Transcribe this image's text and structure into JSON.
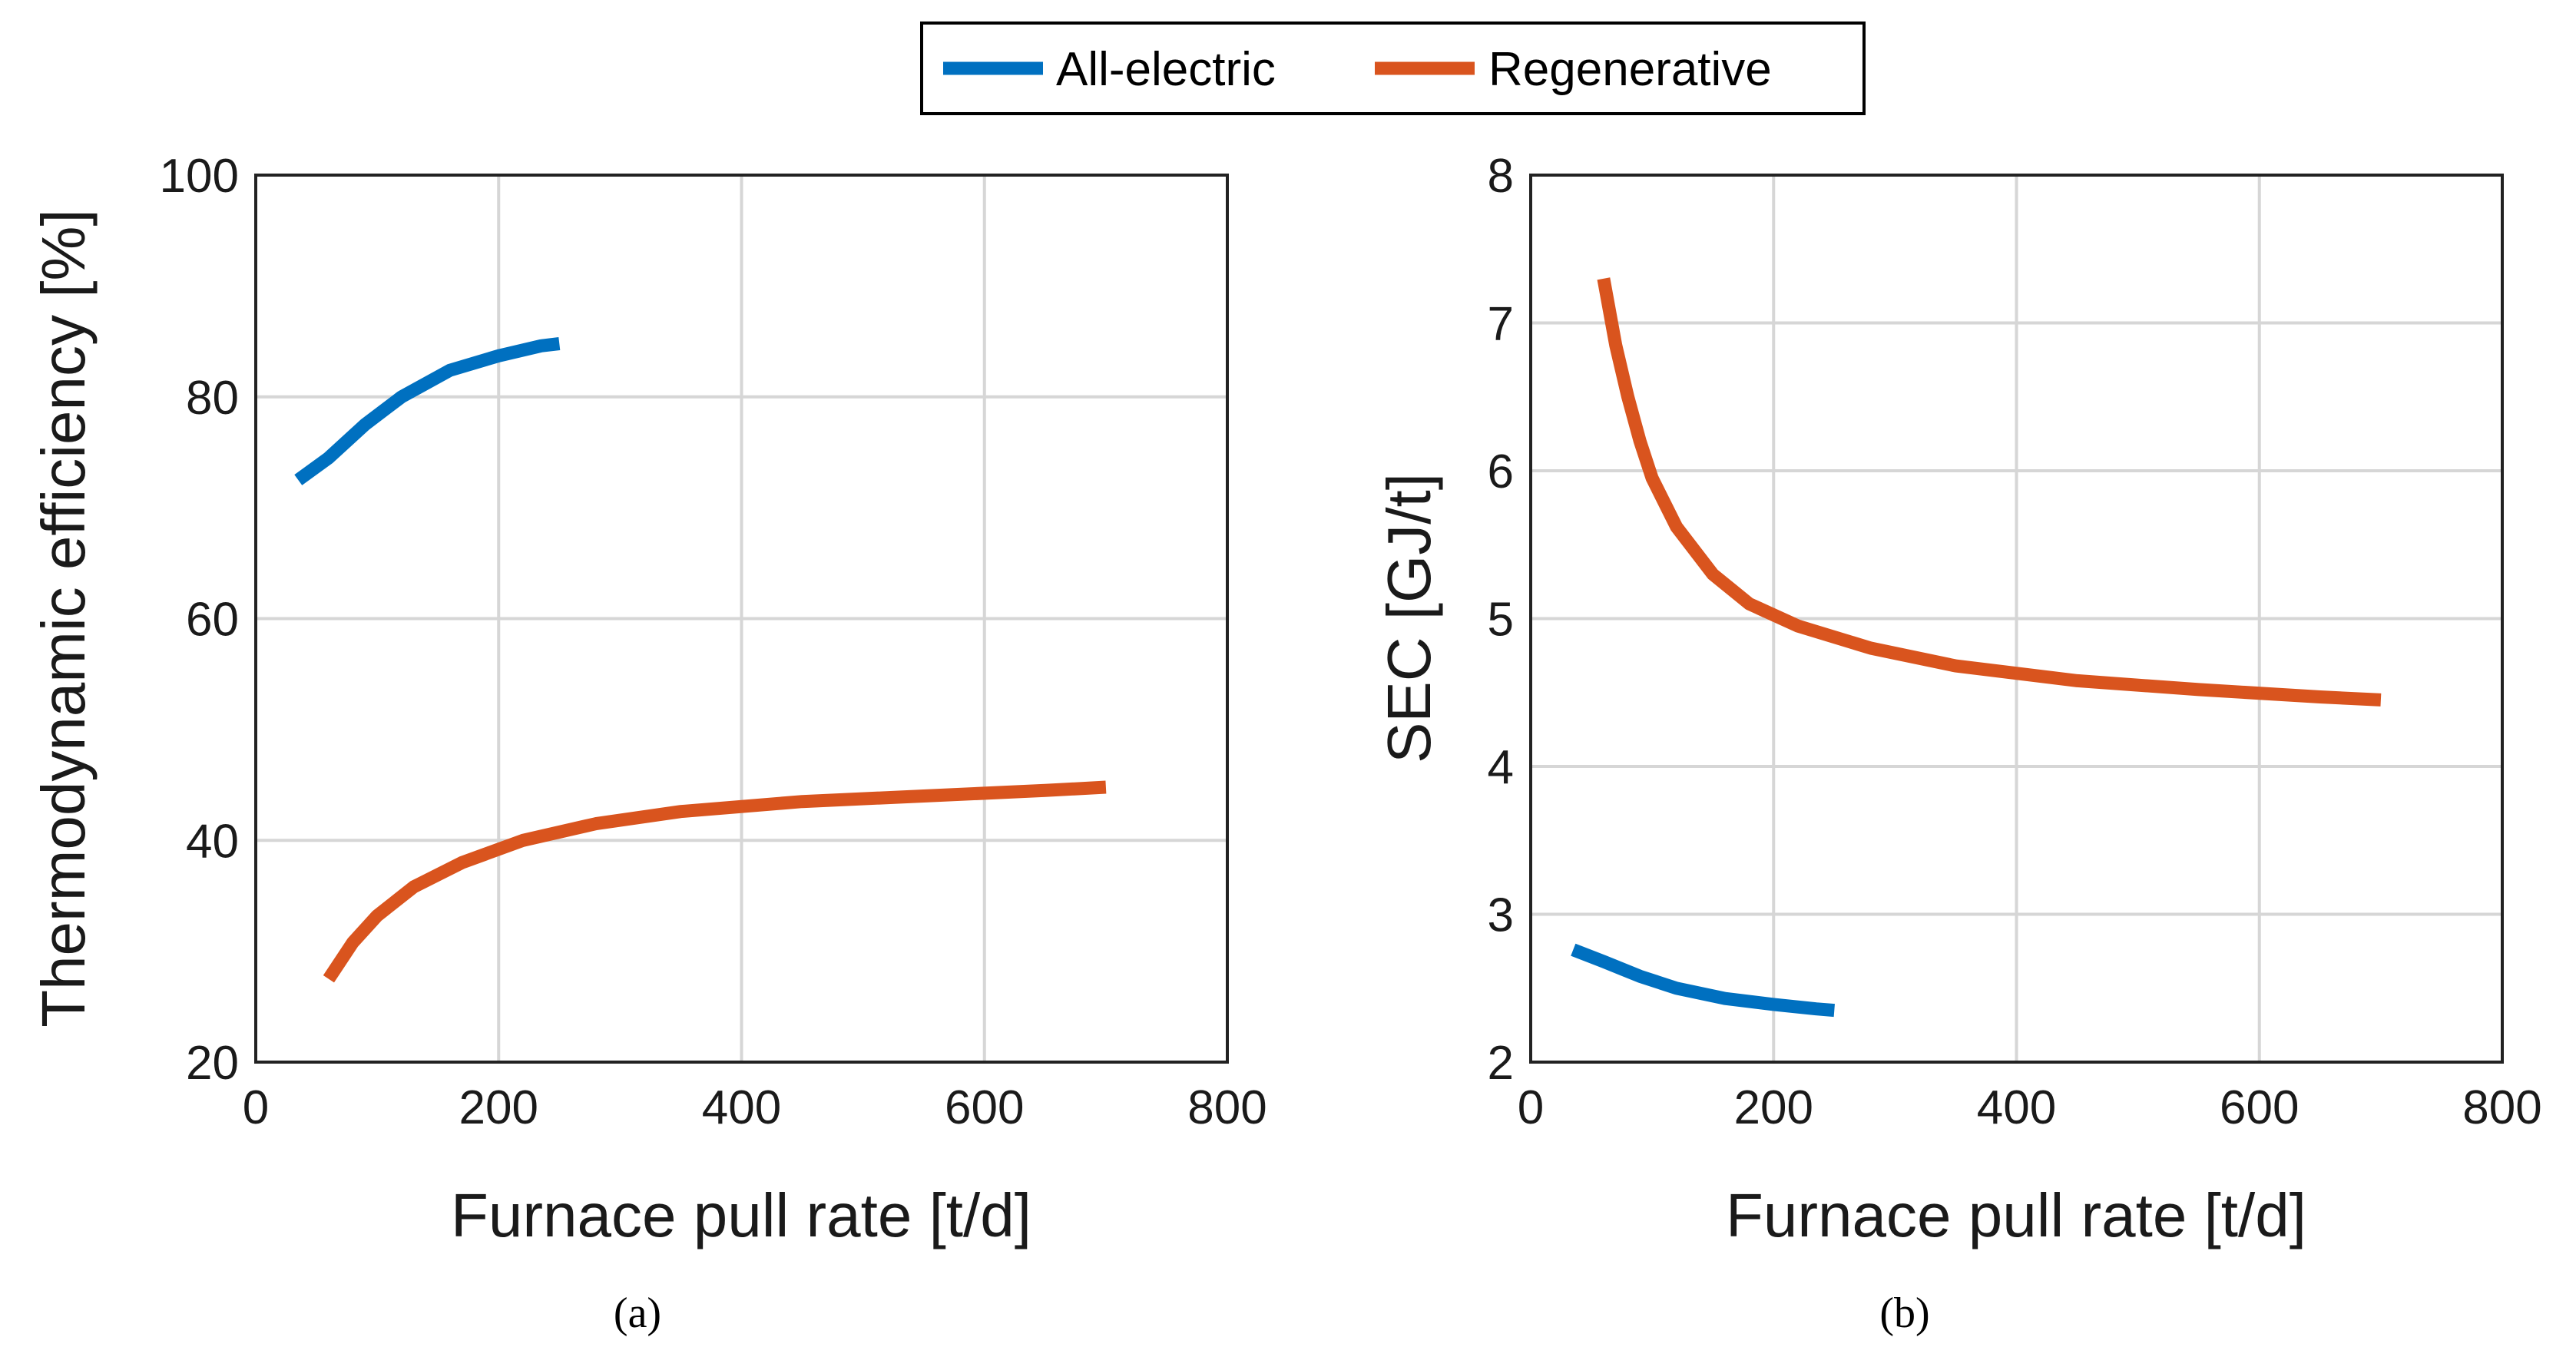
{
  "legend": {
    "items": [
      {
        "label": "All-electric",
        "color": "#0070C0"
      },
      {
        "label": "Regenerative",
        "color": "#D9541E"
      }
    ]
  },
  "chart_data": [
    {
      "type": "line",
      "panel_label": "(a)",
      "xlabel": "Furnace pull rate [t/d]",
      "ylabel": "Thermodynamic efficiency [%]",
      "xlim": [
        0,
        800
      ],
      "ylim": [
        20,
        100
      ],
      "xticks": [
        0,
        200,
        400,
        600,
        800
      ],
      "yticks": [
        20,
        40,
        60,
        80,
        100
      ],
      "grid": true,
      "series": [
        {
          "name": "All-electric",
          "color": "#0070C0",
          "x": [
            35,
            60,
            90,
            120,
            160,
            200,
            235,
            250
          ],
          "y": [
            72.5,
            74.5,
            77.5,
            80,
            82.4,
            83.7,
            84.6,
            84.8
          ]
        },
        {
          "name": "Regenerative",
          "color": "#D9541E",
          "x": [
            60,
            80,
            100,
            130,
            170,
            220,
            280,
            350,
            450,
            550,
            650,
            700
          ],
          "y": [
            27.5,
            30.8,
            33.2,
            35.8,
            38.0,
            40.0,
            41.5,
            42.6,
            43.5,
            44.0,
            44.5,
            44.8
          ]
        }
      ]
    },
    {
      "type": "line",
      "panel_label": "(b)",
      "xlabel": "Furnace pull rate [t/d]",
      "ylabel": "SEC [GJ/t]",
      "xlim": [
        0,
        800
      ],
      "ylim": [
        2,
        8
      ],
      "xticks": [
        0,
        200,
        400,
        600,
        800
      ],
      "yticks": [
        2,
        3,
        4,
        5,
        6,
        7,
        8
      ],
      "grid": true,
      "series": [
        {
          "name": "All-electric",
          "color": "#0070C0",
          "x": [
            35,
            60,
            90,
            120,
            160,
            200,
            235,
            250
          ],
          "y": [
            2.76,
            2.68,
            2.58,
            2.5,
            2.43,
            2.39,
            2.36,
            2.35
          ]
        },
        {
          "name": "Regenerative",
          "color": "#D9541E",
          "x": [
            60,
            70,
            80,
            90,
            100,
            120,
            150,
            180,
            220,
            280,
            350,
            450,
            550,
            650,
            700
          ],
          "y": [
            7.3,
            6.85,
            6.5,
            6.2,
            5.95,
            5.62,
            5.3,
            5.1,
            4.95,
            4.8,
            4.68,
            4.58,
            4.52,
            4.47,
            4.45
          ]
        }
      ]
    }
  ]
}
